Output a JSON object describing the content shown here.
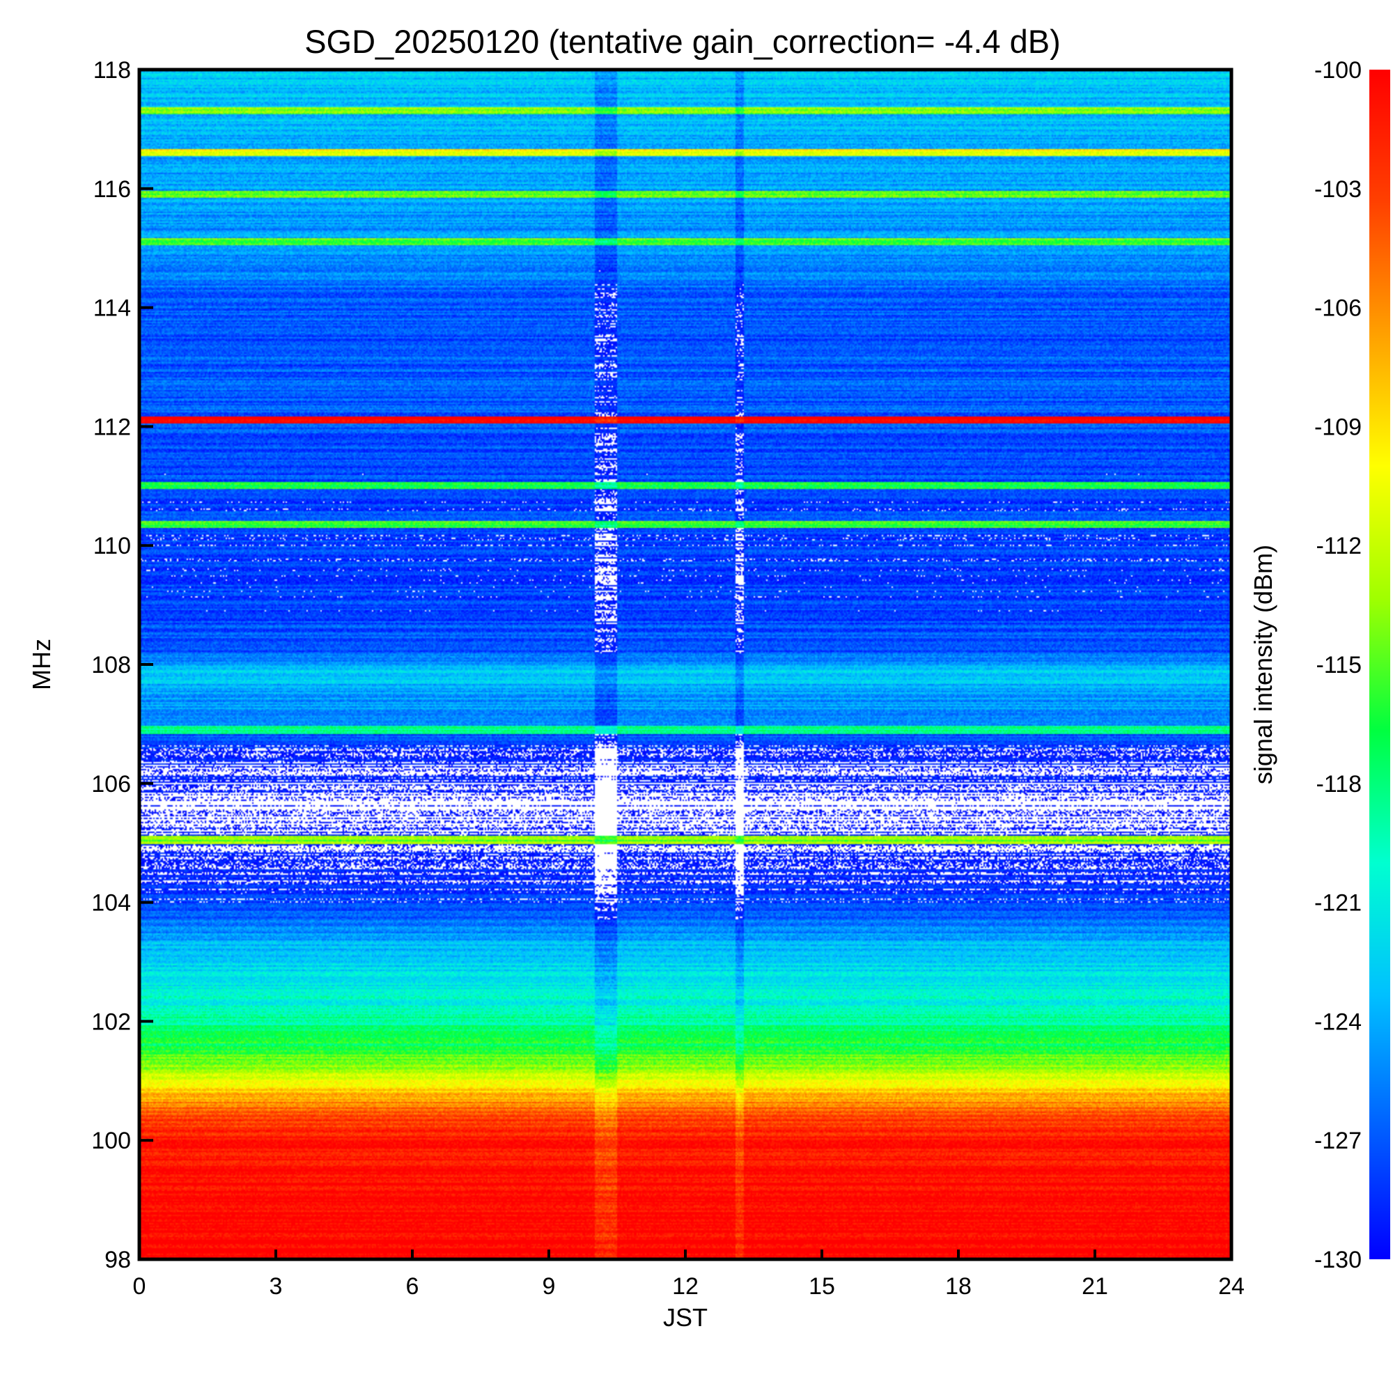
{
  "chart_data": {
    "type": "heatmap",
    "title": "SGD_20250120 (tentative gain_correction= -4.4 dB)",
    "xlabel": "JST",
    "ylabel": "MHz",
    "xlim": [
      0,
      24
    ],
    "ylim": [
      98,
      118
    ],
    "x_ticks": [
      "0",
      "3",
      "6",
      "9",
      "12",
      "15",
      "18",
      "21",
      "24"
    ],
    "y_ticks": [
      "98",
      "100",
      "102",
      "104",
      "106",
      "108",
      "110",
      "112",
      "114",
      "116",
      "118"
    ],
    "colorbar": {
      "label": "signal intensity (dBm)",
      "range": [
        -130,
        -100
      ],
      "ticks": [
        "-100",
        "-103",
        "-106",
        "-109",
        "-112",
        "-115",
        "-118",
        "-121",
        "-124",
        "-127",
        "-130"
      ],
      "colormap": [
        "#0000ff",
        "#0060ff",
        "#00c0ff",
        "#00ffd0",
        "#00ff40",
        "#a0ff00",
        "#ffff00",
        "#ffa000",
        "#ff4000",
        "#ff0000"
      ]
    },
    "frequency_profile_dbm": [
      {
        "f": 98.0,
        "v": -100
      },
      {
        "f": 99.5,
        "v": -100.5
      },
      {
        "f": 100.0,
        "v": -101
      },
      {
        "f": 100.5,
        "v": -104
      },
      {
        "f": 100.8,
        "v": -108
      },
      {
        "f": 101.2,
        "v": -113
      },
      {
        "f": 101.8,
        "v": -118
      },
      {
        "f": 102.5,
        "v": -121
      },
      {
        "f": 103.2,
        "v": -123
      },
      {
        "f": 103.6,
        "v": -126
      },
      {
        "f": 104.2,
        "v": -129
      },
      {
        "f": 104.8,
        "v": -129.5
      },
      {
        "f": 105.5,
        "v": -131
      },
      {
        "f": 106.5,
        "v": -129
      },
      {
        "f": 107.2,
        "v": -125
      },
      {
        "f": 107.9,
        "v": -123
      },
      {
        "f": 108.2,
        "v": -127
      },
      {
        "f": 110.0,
        "v": -128
      },
      {
        "f": 112.0,
        "v": -127
      },
      {
        "f": 114.0,
        "v": -127
      },
      {
        "f": 114.8,
        "v": -125
      },
      {
        "f": 116.5,
        "v": -124
      },
      {
        "f": 118.0,
        "v": -123
      }
    ],
    "persistent_lines": [
      {
        "f": 117.3,
        "v": -114
      },
      {
        "f": 116.6,
        "v": -110
      },
      {
        "f": 115.9,
        "v": -115
      },
      {
        "f": 115.1,
        "v": -115
      },
      {
        "f": 112.1,
        "v": -100
      },
      {
        "f": 111.0,
        "v": -117
      },
      {
        "f": 110.35,
        "v": -116
      },
      {
        "f": 106.9,
        "v": -118
      },
      {
        "f": 105.05,
        "v": -114
      }
    ],
    "events_jst": [
      {
        "start": 10.0,
        "end": 10.5,
        "note": "broadband dip"
      },
      {
        "start": 13.1,
        "end": 13.3,
        "note": "narrow dip"
      }
    ]
  }
}
